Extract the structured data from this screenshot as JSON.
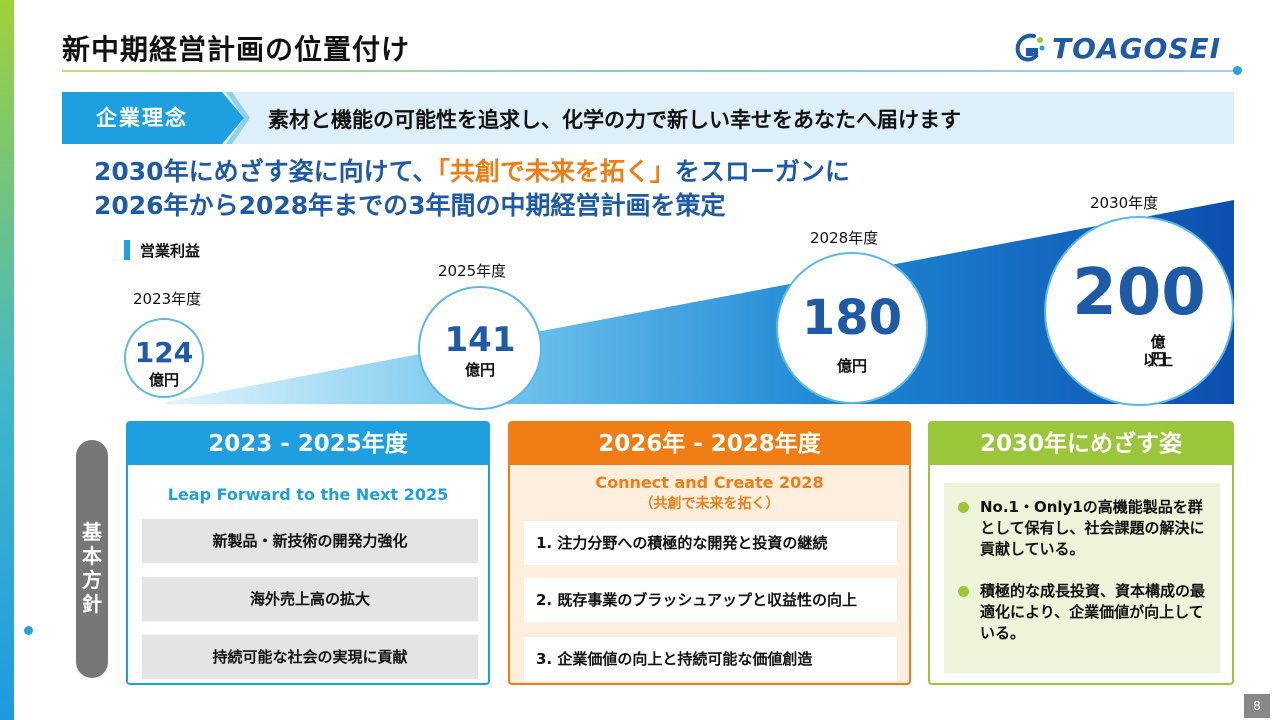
{
  "slide": {
    "title": "新中期経営計画の位置付け",
    "logo_text": "TOAGOSEI",
    "page_number": "8"
  },
  "philosophy": {
    "tag": "企業理念",
    "text": "素材と機能の可能性を追求し、化学の力で新しい幸せをあなたへ届けます"
  },
  "headline": {
    "line1_pre": "2030年にめざす姿に向けて、",
    "line1_accent": "「共創で未来を拓く」",
    "line1_post": "をスローガンに",
    "line2": "2026年から2028年までの3年間の中期経営計画を策定"
  },
  "graph": {
    "label": "営業利益",
    "points": [
      {
        "year": "2023年度",
        "value": "124",
        "unit": "億円",
        "unit2": ""
      },
      {
        "year": "2025年度",
        "value": "141",
        "unit": "億円",
        "unit2": ""
      },
      {
        "year": "2028年度",
        "value": "180",
        "unit": "億円",
        "unit2": ""
      },
      {
        "year": "2030年度",
        "value": "200",
        "unit": "億円",
        "unit2": "以上"
      }
    ]
  },
  "side_tab": "基本方針",
  "panels": {
    "p1": {
      "header": "2023 - 2025年度",
      "subtitle": "Leap Forward to the Next 2025",
      "items": [
        "新製品・新技術の開発力強化",
        "海外売上高の拡大",
        "持続可能な社会の実現に貢献"
      ]
    },
    "p2": {
      "header": "2026年 - 2028年度",
      "subtitle": "Connect and Create 2028",
      "subtitle2": "（共創で未来を拓く）",
      "items": [
        "1. 注力分野への積極的な開発と投資の継続",
        "2. 既存事業のブラッシュアップと収益性の向上",
        "3. 企業価値の向上と持続可能な価値創造"
      ]
    },
    "p3": {
      "header": "2030年にめざす姿",
      "items": [
        "No.1・Only1の高機能製品を群として保有し、社会課題の解決に貢献している。",
        "積極的な成長投資、資本構成の最適化により、企業価値が向上している。"
      ]
    }
  },
  "colors": {
    "brand_blue": "#1f5aa6",
    "sky_blue": "#1ea0e0",
    "orange": "#ef7d14",
    "green": "#9cc63a"
  }
}
